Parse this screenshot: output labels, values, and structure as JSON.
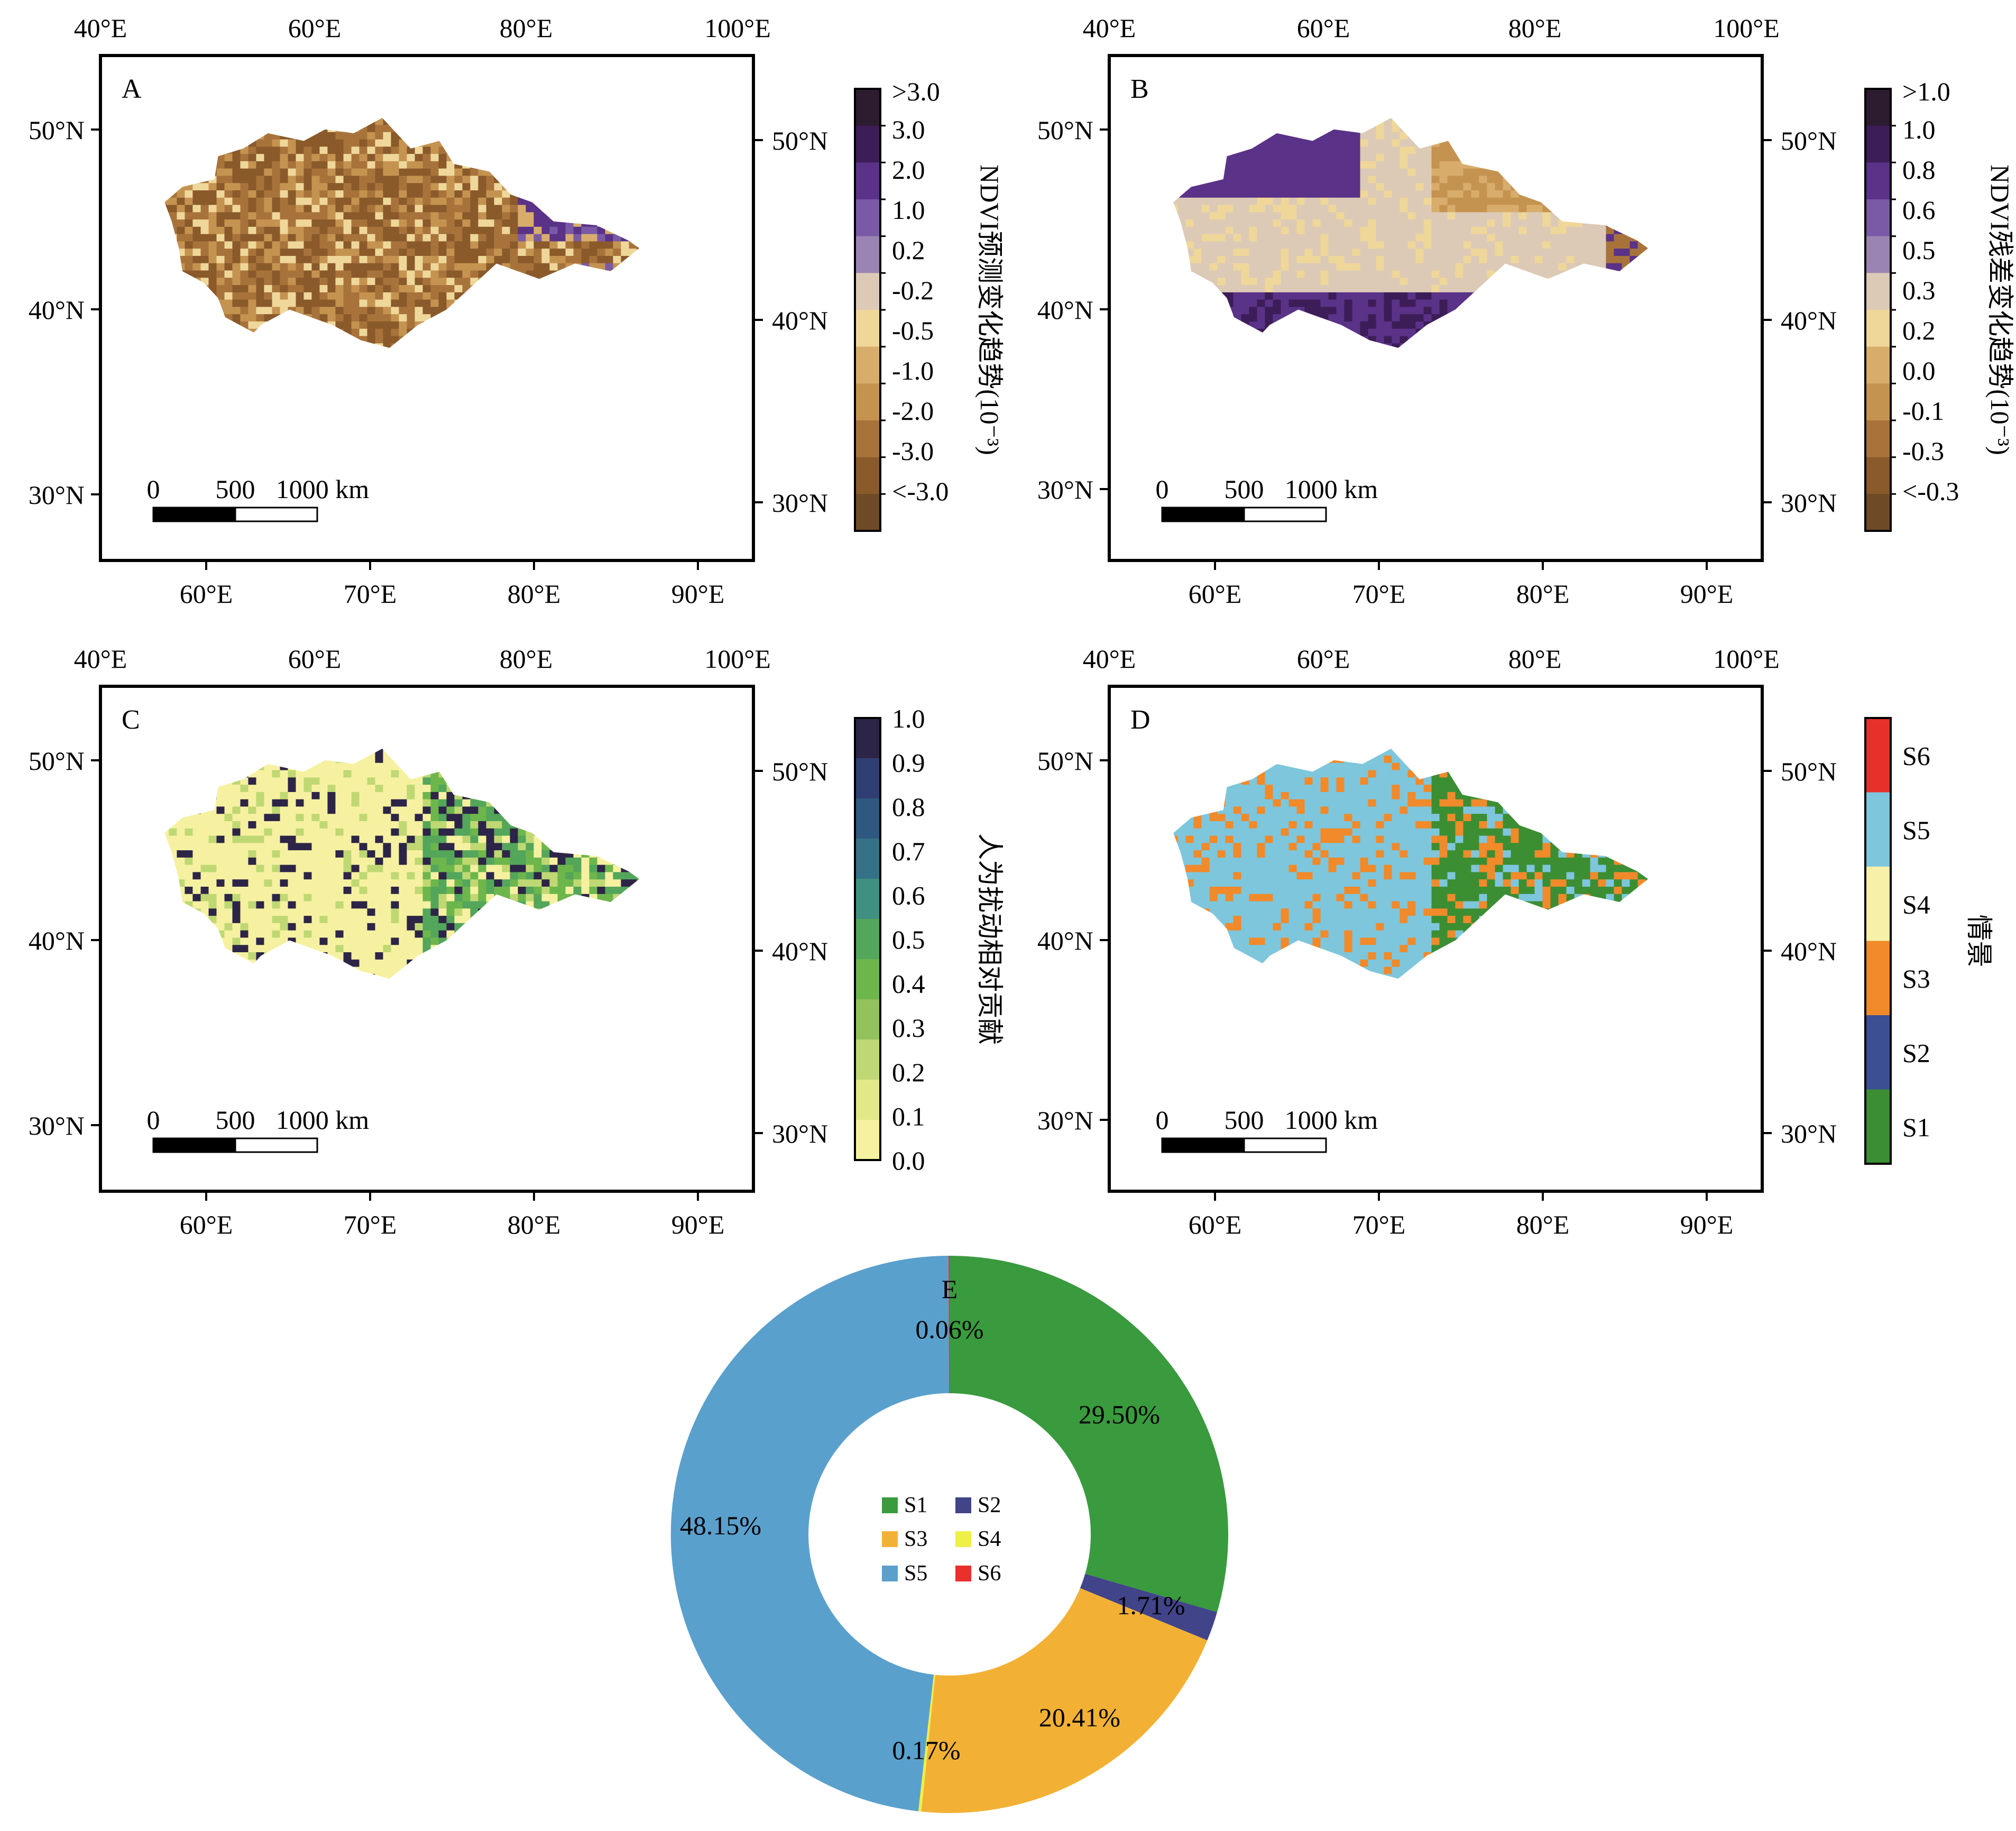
{
  "colors": {
    "brown": [
      "#6f4a26",
      "#8a5a2b",
      "#a8733b",
      "#c59350",
      "#d8ad6c",
      "#efd79a",
      "#dccab6",
      "#9a84b4",
      "#7a5aa6",
      "#5a3288",
      "#3d1d57",
      "#2d1b2f"
    ],
    "green": [
      "#f6f1a0",
      "#e2e888",
      "#bfd873",
      "#93c25c",
      "#6db64c",
      "#53a65a",
      "#3f9080",
      "#357288",
      "#2e5880",
      "#2f3e73",
      "#2d2547"
    ],
    "scen": [
      "#3c8e33",
      "#3c4f93",
      "#f08a2a",
      "#f6f0a9",
      "#7ec6dc",
      "#e8302a"
    ],
    "donut": [
      "#3a9a3e",
      "#414488",
      "#f2b134",
      "#eef047",
      "#5aa0cd",
      "#e9302a"
    ]
  },
  "panels": [
    {
      "letter": "A",
      "lon_inner": [
        "60°E",
        "70°E",
        "80°E",
        "90°E"
      ],
      "lon_outer": [
        "40°E",
        "60°E",
        "80°E",
        "100°E"
      ],
      "lat_left": [
        "50°N",
        "40°N",
        "30°N"
      ],
      "lat_right": [
        "50°N",
        "40°N",
        "30°N"
      ],
      "scalebar": [
        "0",
        "500",
        "1000 km"
      ],
      "colorbar": {
        "title": "NDVI预测变化趋势(10⁻³)",
        "labels": [
          ">3.0",
          "3.0",
          "2.0",
          "1.0",
          "0.2",
          "-0.2",
          "-0.5",
          "-1.0",
          "-2.0",
          "-3.0",
          "<-3.0"
        ]
      }
    },
    {
      "letter": "B",
      "lon_inner": [
        "60°E",
        "70°E",
        "80°E",
        "90°E"
      ],
      "lon_outer": [
        "40°E",
        "60°E",
        "80°E",
        "100°E"
      ],
      "lat_left": [
        "50°N",
        "40°N",
        "30°N"
      ],
      "lat_right": [
        "50°N",
        "40°N",
        "30°N"
      ],
      "scalebar": [
        "0",
        "500",
        "1000 km"
      ],
      "colorbar": {
        "title": "NDVI残差变化趋势(10⁻³)",
        "labels": [
          ">1.0",
          "1.0",
          "0.8",
          "0.6",
          "0.5",
          "0.3",
          "0.2",
          "0.0",
          "-0.1",
          "-0.3",
          "<-0.3"
        ]
      }
    },
    {
      "letter": "C",
      "lon_inner": [
        "60°E",
        "70°E",
        "80°E",
        "90°E"
      ],
      "lon_outer": [
        "40°E",
        "60°E",
        "80°E",
        "100°E"
      ],
      "lat_left": [
        "50°N",
        "40°N",
        "30°N"
      ],
      "lat_right": [
        "50°N",
        "40°N",
        "30°N"
      ],
      "scalebar": [
        "0",
        "500",
        "1000 km"
      ],
      "colorbar": {
        "title": "人为扰动相对贡献",
        "labels": [
          "1.0",
          "0.9",
          "0.8",
          "0.7",
          "0.6",
          "0.5",
          "0.4",
          "0.3",
          "0.2",
          "0.1",
          "0.0"
        ]
      }
    },
    {
      "letter": "D",
      "lon_inner": [
        "60°E",
        "70°E",
        "80°E",
        "90°E"
      ],
      "lon_outer": [
        "40°E",
        "60°E",
        "80°E",
        "100°E"
      ],
      "lat_left": [
        "50°N",
        "40°N",
        "30°N"
      ],
      "lat_right": [
        "50°N",
        "40°N",
        "30°N"
      ],
      "scalebar": [
        "0",
        "500",
        "1000 km"
      ],
      "colorbar": {
        "title": "情景",
        "labels": [
          "S6",
          "S5",
          "S4",
          "S3",
          "S2",
          "S1"
        ]
      }
    }
  ],
  "chart_data": {
    "type": "pie",
    "title": "E",
    "categories": [
      "S1",
      "S2",
      "S3",
      "S4",
      "S5",
      "S6"
    ],
    "values": [
      29.5,
      1.71,
      20.41,
      0.17,
      48.15,
      0.06
    ],
    "data_labels": [
      "29.50%",
      "1.71%",
      "20.41%",
      "0.17%",
      "48.15%",
      "0.06%"
    ],
    "legend": [
      "S1",
      "S2",
      "S3",
      "S4",
      "S5",
      "S6"
    ],
    "legend_position": "center"
  }
}
